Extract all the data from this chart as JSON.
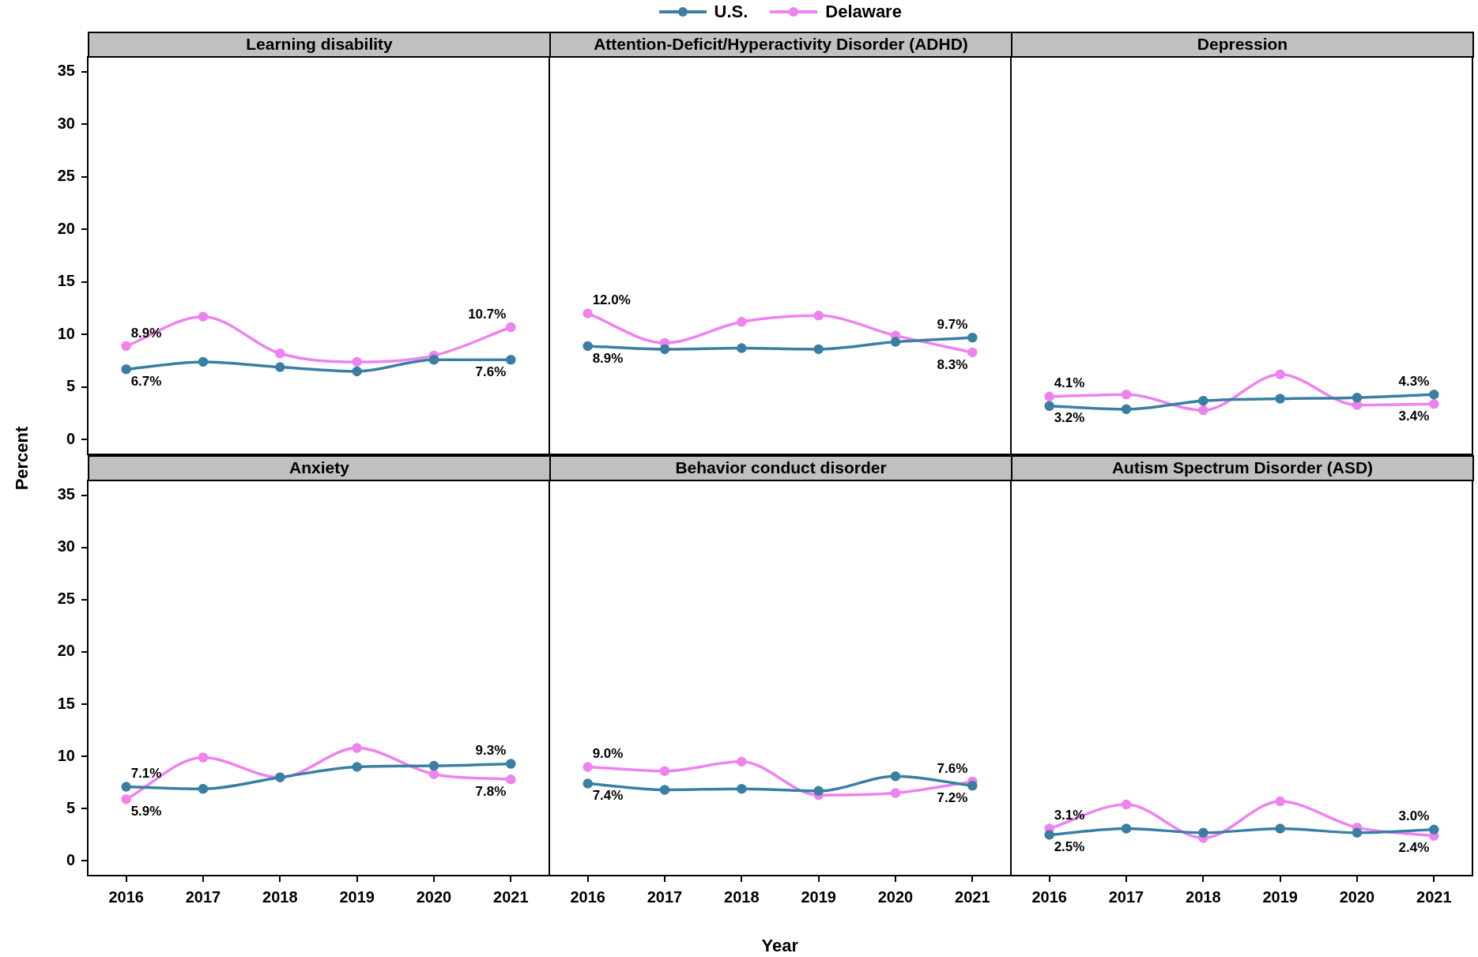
{
  "chart_data": [
    {
      "type": "line",
      "title": "Learning disability",
      "ylabel": "Percent",
      "legend": "top",
      "marker": "circle",
      "tick_labels": "y",
      "categories": [
        "2016",
        "2017",
        "2018",
        "2019",
        "2020",
        "2021"
      ],
      "ylim": [
        -1.4,
        36.4
      ],
      "yticks": [
        0,
        5,
        10,
        15,
        20,
        25,
        30,
        35
      ],
      "series": [
        {
          "name": "U.S.",
          "color": "#3a7fa3",
          "values": [
            6.7,
            7.4,
            6.9,
            6.5,
            7.6,
            7.6
          ],
          "value_labels": [
            "6.7%",
            null,
            null,
            null,
            null,
            "7.6%"
          ]
        },
        {
          "name": "Delaware",
          "color": "#ee82ee",
          "values": [
            8.9,
            11.7,
            8.2,
            7.4,
            8.0,
            10.7
          ],
          "value_labels": [
            "8.9%",
            null,
            null,
            null,
            null,
            "10.7%"
          ]
        }
      ]
    },
    {
      "type": "line",
      "title": "Attention-Deficit/Hyperactivity Disorder (ADHD)",
      "marker": "circle",
      "tick_labels": false,
      "categories": [
        "2016",
        "2017",
        "2018",
        "2019",
        "2020",
        "2021"
      ],
      "ylim": [
        -1.4,
        36.4
      ],
      "yticks": [
        0,
        5,
        10,
        15,
        20,
        25,
        30,
        35
      ],
      "series": [
        {
          "color": "#3a7fa3",
          "values": [
            8.9,
            8.6,
            8.7,
            8.6,
            9.3,
            9.7
          ],
          "value_labels": [
            "8.9%",
            null,
            null,
            null,
            null,
            "9.7%"
          ]
        },
        {
          "color": "#ee82ee",
          "values": [
            12.0,
            9.2,
            11.2,
            11.8,
            9.9,
            8.3
          ],
          "value_labels": [
            "12.0%",
            null,
            null,
            null,
            null,
            "8.3%"
          ]
        }
      ]
    },
    {
      "type": "line",
      "title": "Depression",
      "marker": "circle",
      "tick_labels": false,
      "categories": [
        "2016",
        "2017",
        "2018",
        "2019",
        "2020",
        "2021"
      ],
      "ylim": [
        -1.4,
        36.4
      ],
      "yticks": [
        0,
        5,
        10,
        15,
        20,
        25,
        30,
        35
      ],
      "series": [
        {
          "color": "#3a7fa3",
          "values": [
            3.2,
            2.9,
            3.7,
            3.9,
            4.0,
            4.3
          ],
          "value_labels": [
            "3.2%",
            null,
            null,
            null,
            null,
            "4.3%"
          ]
        },
        {
          "color": "#ee82ee",
          "values": [
            4.1,
            4.3,
            2.8,
            6.2,
            3.3,
            3.4
          ],
          "value_labels": [
            "4.1%",
            null,
            null,
            null,
            null,
            "3.4%"
          ]
        }
      ]
    },
    {
      "type": "line",
      "title": "Anxiety",
      "marker": "circle",
      "categories": [
        "2016",
        "2017",
        "2018",
        "2019",
        "2020",
        "2021"
      ],
      "ylim": [
        -1.4,
        36.4
      ],
      "yticks": [
        0,
        5,
        10,
        15,
        20,
        25,
        30,
        35
      ],
      "series": [
        {
          "color": "#3a7fa3",
          "values": [
            7.1,
            6.9,
            8.0,
            9.0,
            9.1,
            9.3
          ],
          "value_labels": [
            "7.1%",
            null,
            null,
            null,
            null,
            "9.3%"
          ]
        },
        {
          "color": "#ee82ee",
          "values": [
            5.9,
            9.9,
            8.0,
            10.8,
            8.3,
            7.8
          ],
          "value_labels": [
            "5.9%",
            null,
            null,
            null,
            null,
            "7.8%"
          ]
        }
      ]
    },
    {
      "type": "line",
      "title": "Behavior conduct disorder",
      "xlabel": "Year",
      "marker": "circle",
      "tick_labels": "x",
      "categories": [
        "2016",
        "2017",
        "2018",
        "2019",
        "2020",
        "2021"
      ],
      "ylim": [
        -1.4,
        36.4
      ],
      "yticks": [
        0,
        5,
        10,
        15,
        20,
        25,
        30,
        35
      ],
      "series": [
        {
          "color": "#3a7fa3",
          "values": [
            7.4,
            6.8,
            6.9,
            6.7,
            8.1,
            7.2
          ],
          "value_labels": [
            "7.4%",
            null,
            null,
            null,
            null,
            "7.2%"
          ]
        },
        {
          "color": "#ee82ee",
          "values": [
            9.0,
            8.6,
            9.5,
            6.3,
            6.5,
            7.6
          ],
          "value_labels": [
            "9.0%",
            null,
            null,
            null,
            null,
            "7.6%"
          ]
        }
      ]
    },
    {
      "type": "line",
      "title": "Autism Spectrum Disorder (ASD)",
      "marker": "circle",
      "tick_labels": "x",
      "categories": [
        "2016",
        "2017",
        "2018",
        "2019",
        "2020",
        "2021"
      ],
      "ylim": [
        -1.4,
        36.4
      ],
      "yticks": [
        0,
        5,
        10,
        15,
        20,
        25,
        30,
        35
      ],
      "series": [
        {
          "color": "#3a7fa3",
          "values": [
            2.5,
            3.1,
            2.7,
            3.1,
            2.7,
            3.0
          ],
          "value_labels": [
            "2.5%",
            null,
            null,
            null,
            null,
            "3.0%"
          ]
        },
        {
          "color": "#ee82ee",
          "values": [
            3.1,
            5.4,
            2.2,
            5.7,
            3.2,
            2.4
          ],
          "value_labels": [
            "3.1%",
            null,
            null,
            null,
            null,
            "2.4%"
          ]
        }
      ]
    }
  ]
}
